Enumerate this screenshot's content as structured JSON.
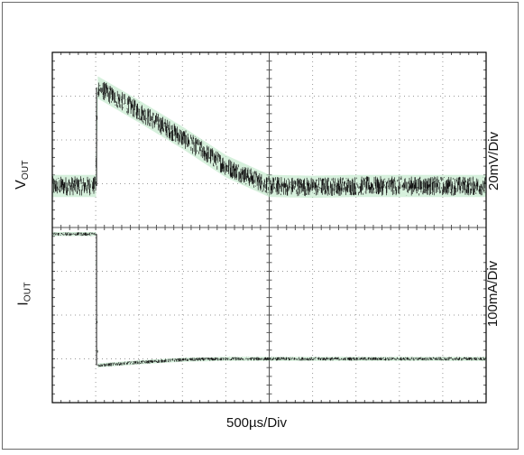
{
  "chart_data": {
    "type": "line",
    "title": "",
    "xlabel": "500µs/Div",
    "divisions": {
      "x": 10,
      "y": 8
    },
    "grid": true,
    "colors": {
      "trace": "#161616",
      "trace_glow": "#b5e3c0",
      "grid": "#9a9a9a",
      "frame": "#000000"
    },
    "channels": [
      {
        "name_main": "V",
        "name_sub": "OUT",
        "scale_label": "20mV/Div",
        "y_range_div": [
          0,
          4
        ],
        "x_div": [
          0,
          1,
          1.05,
          2,
          3,
          4,
          5,
          6,
          7,
          8,
          9,
          10
        ],
        "y_div": [
          0.95,
          0.95,
          3.2,
          2.65,
          2.05,
          1.4,
          0.95,
          0.93,
          0.95,
          0.95,
          0.95,
          0.95
        ],
        "noise_div": 0.22
      },
      {
        "name_main": "I",
        "name_sub": "OUT",
        "scale_label": "100mA/Div",
        "y_range_div": [
          -4,
          0
        ],
        "x_div": [
          0,
          1,
          1.05,
          2,
          3,
          4,
          5,
          6,
          7,
          8,
          9,
          10
        ],
        "y_div": [
          -0.15,
          -0.15,
          -3.15,
          -3.08,
          -3.02,
          -3.0,
          -3.0,
          -3.0,
          -3.0,
          -3.0,
          -3.0,
          -3.0
        ],
        "noise_div": 0.04
      }
    ]
  }
}
